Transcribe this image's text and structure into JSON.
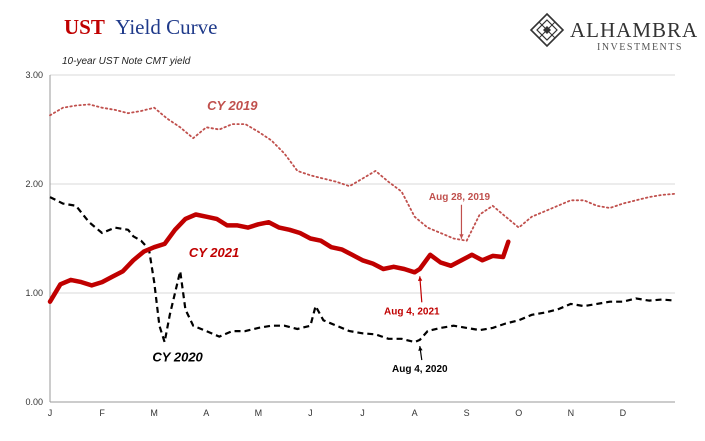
{
  "header": {
    "title_part1": "UST",
    "title_part2": "Yield Curve",
    "subtitle": "10-year UST Note CMT yield"
  },
  "brand": {
    "name": "ALHAMBRA",
    "sub": "INVESTMENTS"
  },
  "colors": {
    "cy2019": "#c0504d",
    "cy2020": "#000000",
    "cy2021": "#c00000",
    "grid": "#d9d9d9"
  },
  "chart_data": {
    "type": "line",
    "title": "UST Yield Curve",
    "subtitle": "10-year UST Note CMT yield",
    "xlabel": "",
    "ylabel": "",
    "ylim": [
      0,
      3
    ],
    "yticks": [
      "0.00",
      "1.00",
      "2.00",
      "3.00"
    ],
    "x_unit": "month of year (1.0 = Jan 1)",
    "xlim": [
      1,
      13
    ],
    "xticks": [
      "J",
      "F",
      "M",
      "A",
      "M",
      "J",
      "J",
      "A",
      "S",
      "O",
      "N",
      "D"
    ],
    "grid": "horizontal",
    "series": [
      {
        "name": "CY 2019",
        "style": "dotted",
        "color": "#c0504d",
        "x": [
          1.0,
          1.25,
          1.5,
          1.75,
          2.0,
          2.25,
          2.5,
          2.75,
          3.0,
          3.25,
          3.5,
          3.75,
          4.0,
          4.25,
          4.5,
          4.75,
          5.0,
          5.25,
          5.5,
          5.75,
          6.0,
          6.25,
          6.5,
          6.75,
          7.0,
          7.25,
          7.5,
          7.75,
          8.0,
          8.25,
          8.5,
          8.75,
          9.0,
          9.25,
          9.5,
          9.75,
          10.0,
          10.25,
          10.5,
          10.75,
          11.0,
          11.25,
          11.5,
          11.75,
          12.0,
          12.25,
          12.5,
          12.75,
          13.0
        ],
        "values": [
          2.63,
          2.7,
          2.72,
          2.73,
          2.7,
          2.68,
          2.65,
          2.67,
          2.7,
          2.6,
          2.52,
          2.42,
          2.52,
          2.5,
          2.55,
          2.55,
          2.48,
          2.4,
          2.28,
          2.12,
          2.08,
          2.05,
          2.02,
          1.98,
          2.05,
          2.12,
          2.02,
          1.93,
          1.7,
          1.6,
          1.55,
          1.5,
          1.48,
          1.72,
          1.8,
          1.7,
          1.6,
          1.7,
          1.75,
          1.8,
          1.85,
          1.85,
          1.8,
          1.78,
          1.82,
          1.85,
          1.88,
          1.9,
          1.91
        ]
      },
      {
        "name": "CY 2020",
        "style": "dashed",
        "color": "#000000",
        "x": [
          1.0,
          1.25,
          1.5,
          1.75,
          2.0,
          2.25,
          2.5,
          2.6,
          2.75,
          2.9,
          3.0,
          3.1,
          3.2,
          3.3,
          3.4,
          3.5,
          3.6,
          3.75,
          4.0,
          4.25,
          4.5,
          4.75,
          5.0,
          5.25,
          5.5,
          5.75,
          6.0,
          6.1,
          6.25,
          6.5,
          6.75,
          7.0,
          7.25,
          7.5,
          7.75,
          8.0,
          8.1,
          8.25,
          8.5,
          8.75,
          9.0,
          9.25,
          9.5,
          9.75,
          10.0,
          10.25,
          10.5,
          10.75,
          11.0,
          11.25,
          11.5,
          11.75,
          12.0,
          12.25,
          12.5,
          12.75,
          13.0
        ],
        "values": [
          1.88,
          1.82,
          1.8,
          1.65,
          1.55,
          1.6,
          1.58,
          1.52,
          1.48,
          1.4,
          1.1,
          0.7,
          0.55,
          0.8,
          1.0,
          1.2,
          0.85,
          0.7,
          0.65,
          0.6,
          0.65,
          0.65,
          0.68,
          0.7,
          0.7,
          0.67,
          0.7,
          0.88,
          0.75,
          0.7,
          0.65,
          0.63,
          0.62,
          0.58,
          0.58,
          0.55,
          0.57,
          0.65,
          0.68,
          0.7,
          0.68,
          0.66,
          0.68,
          0.72,
          0.75,
          0.8,
          0.82,
          0.85,
          0.9,
          0.88,
          0.9,
          0.92,
          0.92,
          0.95,
          0.93,
          0.94,
          0.93
        ]
      },
      {
        "name": "CY 2021",
        "style": "solid-thick",
        "color": "#c00000",
        "x": [
          1.0,
          1.2,
          1.4,
          1.6,
          1.8,
          2.0,
          2.2,
          2.4,
          2.6,
          2.8,
          3.0,
          3.2,
          3.4,
          3.6,
          3.8,
          4.0,
          4.2,
          4.4,
          4.6,
          4.8,
          5.0,
          5.2,
          5.4,
          5.6,
          5.8,
          6.0,
          6.2,
          6.4,
          6.6,
          6.8,
          7.0,
          7.2,
          7.4,
          7.6,
          7.8,
          8.0,
          8.1,
          8.3,
          8.5,
          8.7,
          8.9,
          9.1,
          9.3,
          9.5,
          9.7,
          9.8
        ],
        "values": [
          0.92,
          1.08,
          1.12,
          1.1,
          1.07,
          1.1,
          1.15,
          1.2,
          1.3,
          1.38,
          1.42,
          1.45,
          1.58,
          1.68,
          1.72,
          1.7,
          1.68,
          1.62,
          1.62,
          1.6,
          1.63,
          1.65,
          1.6,
          1.58,
          1.55,
          1.5,
          1.48,
          1.42,
          1.4,
          1.35,
          1.3,
          1.27,
          1.22,
          1.24,
          1.22,
          1.19,
          1.22,
          1.35,
          1.28,
          1.25,
          1.3,
          1.35,
          1.3,
          1.34,
          1.33,
          1.47
        ]
      }
    ],
    "annotations": [
      {
        "text": "CY 2019",
        "series": "CY 2019",
        "x": 4.5,
        "y": 2.68
      },
      {
        "text": "CY 2020",
        "series": "CY 2020",
        "x": 3.45,
        "y": 0.37
      },
      {
        "text": "CY 2021",
        "series": "CY 2021",
        "x": 4.15,
        "y": 1.33
      },
      {
        "text": "Aug 28, 2019",
        "series": "CY 2019",
        "x": 8.9,
        "y": 1.47
      },
      {
        "text": "Aug 4, 2021",
        "series": "CY 2021",
        "x": 8.1,
        "y": 1.19
      },
      {
        "text": "Aug 4, 2020",
        "series": "CY 2020",
        "x": 8.1,
        "y": 0.55
      }
    ]
  }
}
